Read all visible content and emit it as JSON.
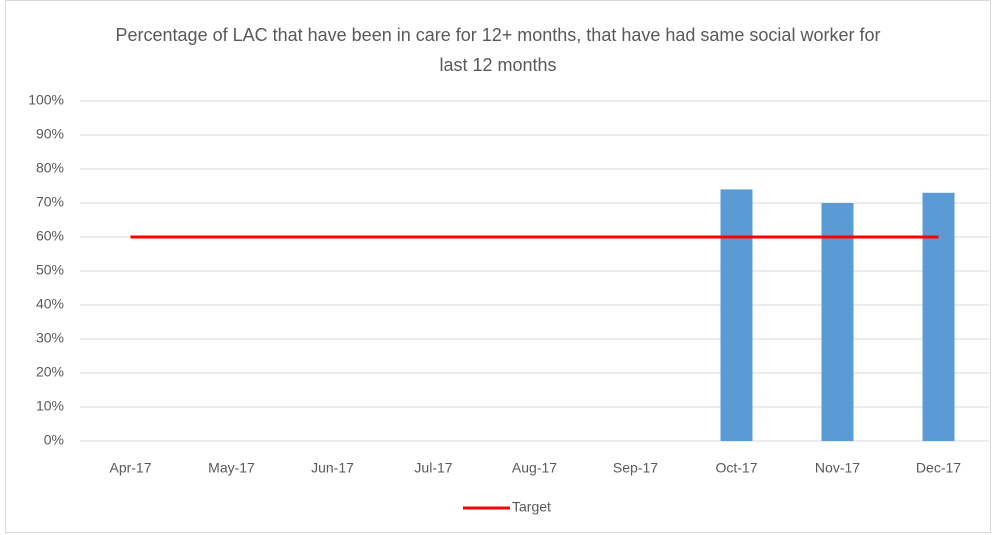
{
  "chart_data": {
    "type": "bar",
    "title": "Percentage of LAC that have been in care for 12+ months, that have had same social worker for last 12 months",
    "categories": [
      "Apr-17",
      "May-17",
      "Jun-17",
      "Jul-17",
      "Aug-17",
      "Sep-17",
      "Oct-17",
      "Nov-17",
      "Dec-17"
    ],
    "series": [
      {
        "type": "bar",
        "color": "#5b9bd5",
        "values": [
          null,
          null,
          null,
          null,
          null,
          null,
          74,
          70,
          73
        ]
      },
      {
        "type": "line",
        "name": "Target",
        "color": "#ff0000",
        "values": [
          60,
          60,
          60,
          60,
          60,
          60,
          60,
          60,
          60
        ]
      }
    ],
    "ylim": [
      0,
      100
    ],
    "yticks": [
      {
        "value": 0,
        "label": "0%"
      },
      {
        "value": 10,
        "label": "10%"
      },
      {
        "value": 20,
        "label": "20%"
      },
      {
        "value": 30,
        "label": "30%"
      },
      {
        "value": 40,
        "label": "40%"
      },
      {
        "value": 50,
        "label": "50%"
      },
      {
        "value": 60,
        "label": "60%"
      },
      {
        "value": 70,
        "label": "70%"
      },
      {
        "value": 80,
        "label": "80%"
      },
      {
        "value": 90,
        "label": "90%"
      },
      {
        "value": 100,
        "label": "100%"
      }
    ],
    "grid": true,
    "legend": "bottom"
  }
}
